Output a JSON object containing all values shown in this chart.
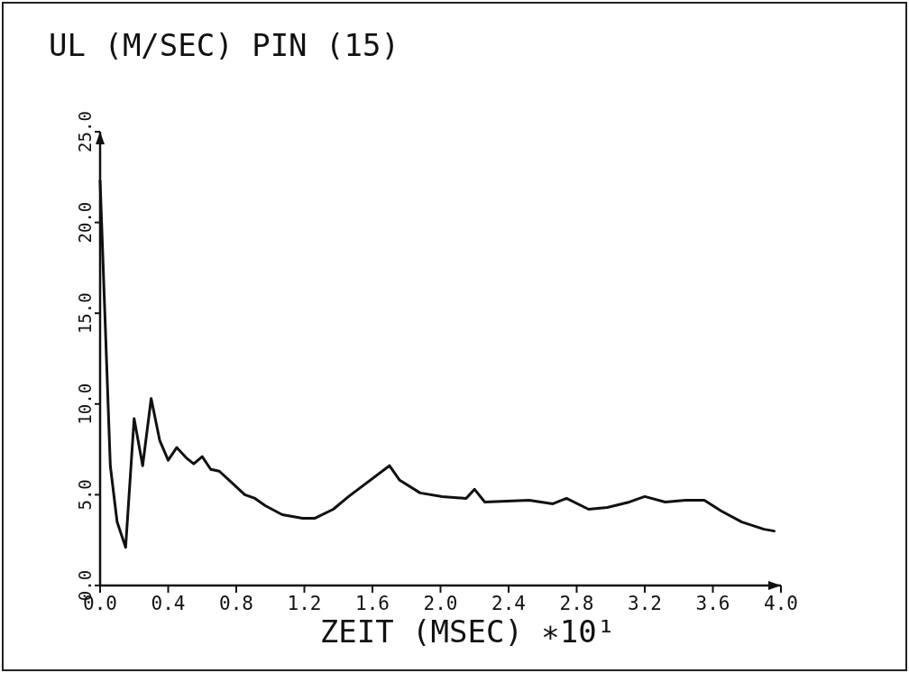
{
  "chart_data": {
    "type": "line",
    "title": "UL  (M/SEC) PIN (15)",
    "xlabel": "ZEIT  (MSEC)  ∗10¹",
    "xlim": [
      0,
      4
    ],
    "xticks": [
      {
        "value": 0,
        "label": "0.0"
      },
      {
        "value": 0.4,
        "label": "0.4"
      },
      {
        "value": 0.8,
        "label": "0.8"
      },
      {
        "value": 1.2,
        "label": "1.2"
      },
      {
        "value": 1.6,
        "label": "1.6"
      },
      {
        "value": 2,
        "label": "2.0"
      },
      {
        "value": 2.4,
        "label": "2.4"
      },
      {
        "value": 2.8,
        "label": "2.8"
      },
      {
        "value": 3.2,
        "label": "3.2"
      },
      {
        "value": 3.6,
        "label": "3.6"
      },
      {
        "value": 4,
        "label": "4.0"
      }
    ],
    "ylim": [
      0,
      25
    ],
    "yticks": [
      {
        "value": 0,
        "label": "0.0"
      },
      {
        "value": 5,
        "label": "5.0"
      },
      {
        "value": 10,
        "label": "10.0"
      },
      {
        "value": 15,
        "label": "15.0"
      },
      {
        "value": 20,
        "label": "20.0"
      },
      {
        "value": 25,
        "label": "25.0"
      }
    ],
    "marker": "none",
    "line_style": "solid",
    "series": [
      {
        "color": "#111111",
        "x": [
          0,
          0.06,
          0.1,
          0.15,
          0.2,
          0.25,
          0.3,
          0.35,
          0.4,
          0.45,
          0.51,
          0.55,
          0.6,
          0.65,
          0.7,
          0.77,
          0.85,
          0.91,
          0.97,
          1.07,
          1.19,
          1.26,
          1.37,
          1.46,
          1.7,
          1.76,
          1.88,
          2.01,
          2.15,
          2.2,
          2.26,
          2.52,
          2.66,
          2.74,
          2.87,
          2.98,
          3.11,
          3.2,
          3.32,
          3.44,
          3.55,
          3.65,
          3.77,
          3.9,
          3.96
        ],
        "values": [
          22.3,
          6.6,
          3.5,
          2.1,
          9.2,
          6.6,
          10.3,
          8.0,
          6.9,
          7.6,
          7.0,
          6.7,
          7.1,
          6.4,
          6.3,
          5.7,
          5.0,
          4.8,
          4.4,
          3.9,
          3.7,
          3.7,
          4.2,
          4.9,
          6.6,
          5.8,
          5.1,
          4.9,
          4.8,
          5.3,
          4.6,
          4.7,
          4.5,
          4.8,
          4.2,
          4.3,
          4.6,
          4.9,
          4.6,
          4.7,
          4.7,
          4.1,
          3.5,
          3.1,
          3.0
        ]
      }
    ]
  }
}
